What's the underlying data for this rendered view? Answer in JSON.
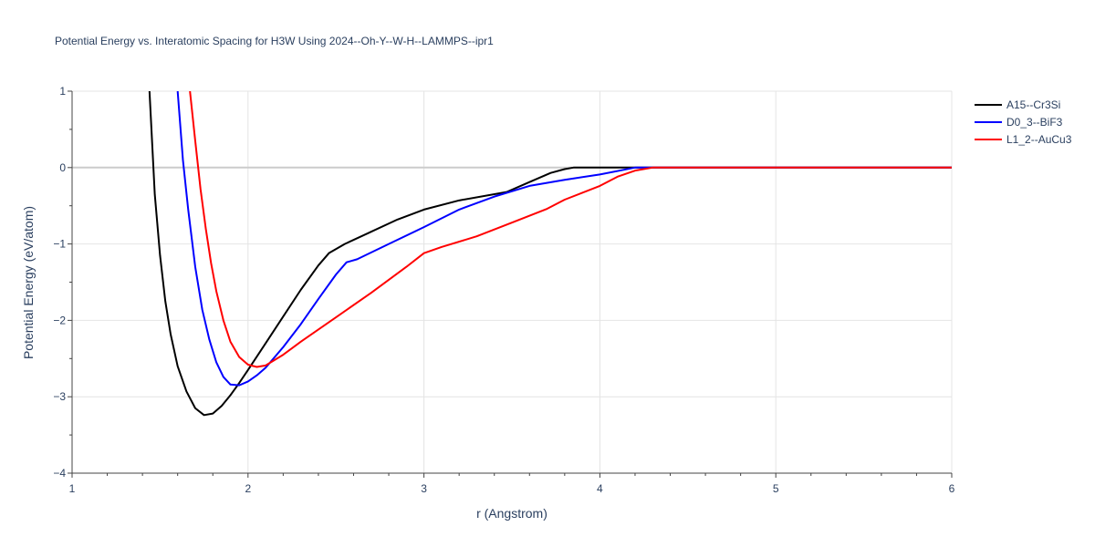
{
  "chart_data": {
    "type": "line",
    "title": "Potential Energy vs. Interatomic Spacing for H3W Using 2024--Oh-Y--W-H--LAMMPS--ipr1",
    "xlabel": "r (Angstrom)",
    "ylabel": "Potential Energy (eV/atom)",
    "xlim": [
      1,
      6
    ],
    "ylim": [
      -4,
      1
    ],
    "xticks": [
      1,
      2,
      3,
      4,
      5,
      6
    ],
    "yticks": [
      1,
      0,
      -1,
      -2,
      -3,
      -4
    ],
    "ytick_labels": [
      "1",
      "0",
      "−1",
      "−2",
      "−3",
      "−4"
    ],
    "grid": true,
    "legend_position": "top-right",
    "series": [
      {
        "name": "A15--Cr3Si",
        "color": "#000000",
        "x": [
          1.44,
          1.47,
          1.5,
          1.53,
          1.56,
          1.6,
          1.65,
          1.7,
          1.75,
          1.8,
          1.85,
          1.9,
          1.95,
          2.0,
          2.1,
          2.2,
          2.3,
          2.4,
          2.46,
          2.55,
          2.7,
          2.85,
          3.0,
          3.2,
          3.47,
          3.6,
          3.72,
          3.8,
          3.85,
          4.0,
          4.5,
          5.0,
          5.5,
          6.0
        ],
        "y": [
          1.0,
          -0.35,
          -1.15,
          -1.75,
          -2.18,
          -2.6,
          -2.93,
          -3.15,
          -3.24,
          -3.22,
          -3.12,
          -2.98,
          -2.82,
          -2.65,
          -2.3,
          -1.95,
          -1.6,
          -1.28,
          -1.12,
          -1.0,
          -0.84,
          -0.68,
          -0.55,
          -0.43,
          -0.32,
          -0.19,
          -0.07,
          -0.02,
          0.0,
          0.0,
          0.0,
          0.0,
          0.0,
          0.0
        ]
      },
      {
        "name": "D0_3--BiF3",
        "color": "#0000ff",
        "x": [
          1.6,
          1.63,
          1.66,
          1.7,
          1.74,
          1.78,
          1.82,
          1.86,
          1.9,
          1.95,
          2.0,
          2.05,
          2.1,
          2.2,
          2.3,
          2.4,
          2.5,
          2.56,
          2.62,
          2.8,
          3.0,
          3.2,
          3.4,
          3.6,
          3.8,
          4.0,
          4.2,
          4.3,
          4.5,
          5.0,
          5.5,
          6.0
        ],
        "y": [
          1.0,
          0.1,
          -0.55,
          -1.3,
          -1.86,
          -2.25,
          -2.55,
          -2.74,
          -2.84,
          -2.85,
          -2.8,
          -2.72,
          -2.62,
          -2.35,
          -2.05,
          -1.72,
          -1.4,
          -1.24,
          -1.2,
          -1.0,
          -0.78,
          -0.55,
          -0.38,
          -0.24,
          -0.16,
          -0.09,
          0.0,
          0.0,
          0.0,
          0.0,
          0.0,
          0.0
        ]
      },
      {
        "name": "L1_2--AuCu3",
        "color": "#ff0000",
        "x": [
          1.67,
          1.7,
          1.73,
          1.76,
          1.79,
          1.82,
          1.86,
          1.9,
          1.95,
          2.0,
          2.05,
          2.1,
          2.2,
          2.3,
          2.5,
          2.7,
          2.9,
          3.0,
          3.1,
          3.3,
          3.5,
          3.7,
          3.8,
          4.0,
          4.1,
          4.2,
          4.3,
          4.5,
          5.0,
          5.5,
          6.0
        ],
        "y": [
          1.0,
          0.35,
          -0.28,
          -0.8,
          -1.25,
          -1.62,
          -2.0,
          -2.28,
          -2.48,
          -2.58,
          -2.61,
          -2.59,
          -2.45,
          -2.28,
          -1.96,
          -1.64,
          -1.3,
          -1.12,
          -1.04,
          -0.9,
          -0.72,
          -0.54,
          -0.42,
          -0.24,
          -0.12,
          -0.04,
          0.0,
          0.0,
          0.0,
          0.0,
          0.0
        ]
      }
    ]
  }
}
